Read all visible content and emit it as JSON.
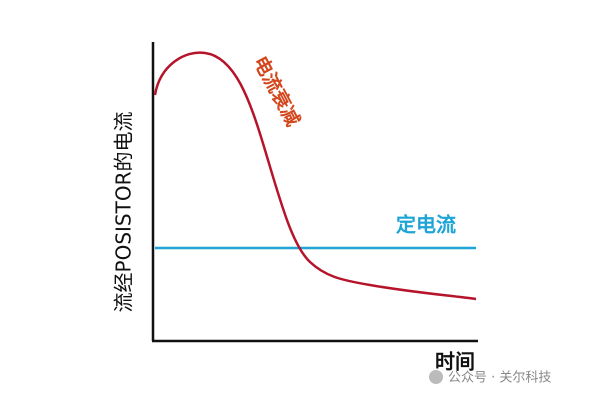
{
  "y_axis_label": "流经POSISTOR的电流",
  "x_axis_label": "时间",
  "decay_label": "电流衰减",
  "constant_label": "定电流",
  "watermark": "公众号 · 关尔科技"
}
